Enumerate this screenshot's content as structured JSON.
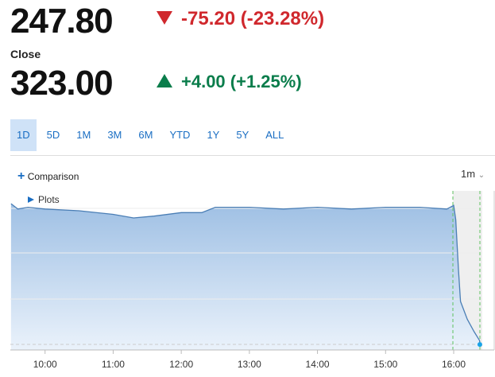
{
  "quote": {
    "last": "247.80",
    "change": "-75.20 (-23.28%)",
    "close_label": "Close",
    "close": "323.00",
    "close_change": "+4.00 (+1.25%)"
  },
  "ranges": [
    "1D",
    "5D",
    "1M",
    "3M",
    "6M",
    "YTD",
    "1Y",
    "5Y",
    "ALL"
  ],
  "active_range": "1D",
  "comparison": "Comparison",
  "interval": "1m",
  "plots": "Plots",
  "chart_data": {
    "type": "line",
    "x": [
      9.5,
      9.6,
      9.75,
      10,
      10.5,
      11,
      11.3,
      11.6,
      12,
      12.3,
      12.5,
      13,
      13.5,
      14,
      14.5,
      15,
      15.5,
      15.9,
      16.0,
      16.03,
      16.07,
      16.1,
      16.2,
      16.3,
      16.38,
      16.384
    ],
    "series": [
      {
        "color": "#4a7eb5",
        "values": [
          327,
          324,
          325,
          324,
          323,
          321,
          319,
          320,
          322,
          322,
          325,
          325,
          324,
          325,
          324,
          325,
          325,
          324,
          326,
          318,
          290,
          272,
          262,
          255,
          250,
          247.8
        ]
      }
    ],
    "xlim": [
      9.49,
      16.42
    ],
    "ylim": [
      244.7,
      334.2
    ],
    "xticks": [
      {
        "value": 10,
        "label": "10:00"
      },
      {
        "value": 11,
        "label": "11:00"
      },
      {
        "value": 12,
        "label": "12:00"
      },
      {
        "value": 13,
        "label": "13:00"
      },
      {
        "value": 14,
        "label": "14:00"
      },
      {
        "value": 15,
        "label": "15:00"
      },
      {
        "value": 16,
        "label": "16:00"
      }
    ]
  }
}
